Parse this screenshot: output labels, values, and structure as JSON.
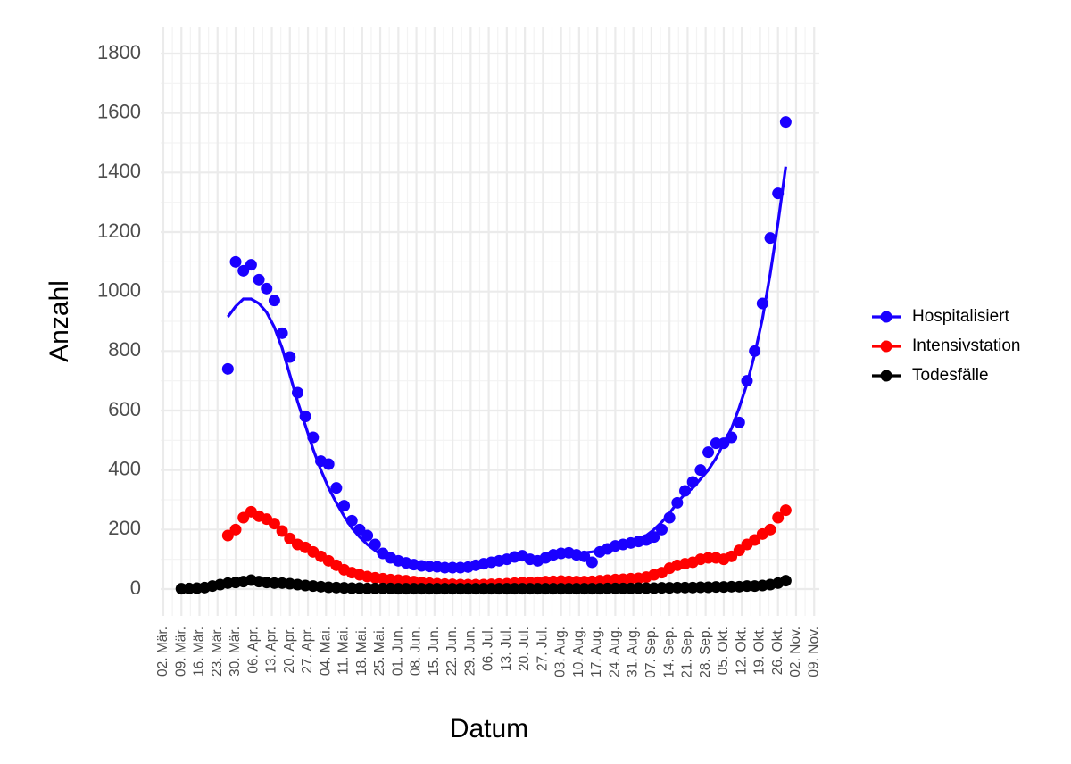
{
  "chart_data": {
    "type": "scatter",
    "x_label": "Datum",
    "y_label": "Anzahl",
    "x": [
      "03-09",
      "03-12",
      "03-15",
      "03-18",
      "03-21",
      "03-24",
      "03-27",
      "03-30",
      "04-02",
      "04-05",
      "04-08",
      "04-11",
      "04-14",
      "04-17",
      "04-20",
      "04-23",
      "04-26",
      "04-29",
      "05-02",
      "05-05",
      "05-08",
      "05-11",
      "05-14",
      "05-17",
      "05-20",
      "05-23",
      "05-26",
      "05-29",
      "06-01",
      "06-04",
      "06-07",
      "06-10",
      "06-13",
      "06-16",
      "06-19",
      "06-22",
      "06-25",
      "06-28",
      "07-01",
      "07-04",
      "07-07",
      "07-10",
      "07-13",
      "07-16",
      "07-19",
      "07-22",
      "07-25",
      "07-28",
      "07-31",
      "08-03",
      "08-06",
      "08-09",
      "08-12",
      "08-15",
      "08-18",
      "08-21",
      "08-24",
      "08-27",
      "08-30",
      "09-02",
      "09-05",
      "09-08",
      "09-11",
      "09-14",
      "09-17",
      "09-20",
      "09-23",
      "09-26",
      "09-29",
      "10-02",
      "10-05",
      "10-08",
      "10-11",
      "10-14",
      "10-17",
      "10-20",
      "10-23",
      "10-26",
      "10-29"
    ],
    "series": [
      {
        "name": "Hospitalisiert",
        "color": "#1a00ff",
        "values": [
          null,
          null,
          null,
          null,
          null,
          null,
          740,
          1100,
          1070,
          1090,
          1040,
          1010,
          970,
          860,
          780,
          660,
          580,
          510,
          430,
          420,
          340,
          280,
          230,
          200,
          180,
          150,
          120,
          105,
          95,
          88,
          82,
          78,
          76,
          75,
          72,
          72,
          72,
          74,
          80,
          85,
          90,
          95,
          100,
          108,
          112,
          100,
          95,
          105,
          115,
          120,
          122,
          115,
          110,
          90,
          125,
          135,
          145,
          150,
          155,
          160,
          165,
          175,
          200,
          240,
          290,
          330,
          360,
          400,
          460,
          490,
          490,
          510,
          560,
          700,
          800,
          960,
          1180,
          1330,
          1570
        ],
        "trend": [
          null,
          null,
          null,
          null,
          null,
          null,
          915,
          950,
          975,
          975,
          960,
          930,
          880,
          810,
          720,
          630,
          550,
          470,
          400,
          340,
          290,
          245,
          205,
          175,
          150,
          130,
          112,
          100,
          90,
          83,
          78,
          75,
          73,
          72,
          72,
          72,
          73,
          75,
          78,
          82,
          87,
          92,
          97,
          100,
          103,
          105,
          107,
          110,
          113,
          115,
          118,
          120,
          122,
          125,
          130,
          135,
          140,
          147,
          155,
          165,
          180,
          200,
          225,
          255,
          290,
          320,
          340,
          370,
          400,
          440,
          490,
          540,
          610,
          690,
          790,
          910,
          1060,
          1230,
          1420
        ]
      },
      {
        "name": "Intensivstation",
        "color": "#ff0000",
        "values": [
          null,
          null,
          null,
          null,
          null,
          null,
          180,
          200,
          240,
          260,
          245,
          235,
          220,
          195,
          170,
          150,
          140,
          125,
          110,
          95,
          80,
          65,
          55,
          48,
          42,
          38,
          35,
          32,
          30,
          28,
          25,
          22,
          20,
          18,
          17,
          16,
          15,
          15,
          15,
          15,
          16,
          17,
          18,
          20,
          22,
          22,
          23,
          25,
          26,
          27,
          26,
          25,
          25,
          26,
          28,
          30,
          32,
          33,
          35,
          36,
          40,
          48,
          55,
          70,
          80,
          85,
          90,
          100,
          105,
          105,
          100,
          110,
          130,
          150,
          165,
          185,
          200,
          240,
          265
        ]
      },
      {
        "name": "Todesfälle",
        "color": "#000000",
        "values": [
          1,
          2,
          3,
          5,
          10,
          15,
          20,
          22,
          25,
          30,
          25,
          22,
          20,
          20,
          18,
          15,
          12,
          10,
          8,
          6,
          5,
          4,
          3,
          3,
          2,
          2,
          2,
          2,
          1,
          1,
          1,
          1,
          1,
          1,
          1,
          1,
          1,
          1,
          1,
          1,
          1,
          1,
          1,
          1,
          1,
          1,
          1,
          1,
          1,
          1,
          1,
          1,
          1,
          1,
          1,
          2,
          2,
          2,
          2,
          3,
          3,
          3,
          4,
          4,
          5,
          5,
          5,
          6,
          6,
          7,
          7,
          8,
          8,
          10,
          10,
          12,
          15,
          20,
          28
        ]
      }
    ],
    "xlim": [
      "03-01",
      "11-11"
    ],
    "xticks": [
      {
        "value": "03-02",
        "label": "02. Mär."
      },
      {
        "value": "03-09",
        "label": "09. Mär."
      },
      {
        "value": "03-16",
        "label": "16. Mär."
      },
      {
        "value": "03-23",
        "label": "23. Mär."
      },
      {
        "value": "03-30",
        "label": "30. Mär."
      },
      {
        "value": "04-06",
        "label": "06. Apr."
      },
      {
        "value": "04-13",
        "label": "13. Apr."
      },
      {
        "value": "04-20",
        "label": "20. Apr."
      },
      {
        "value": "04-27",
        "label": "27. Apr."
      },
      {
        "value": "05-04",
        "label": "04. Mai."
      },
      {
        "value": "05-11",
        "label": "11. Mai."
      },
      {
        "value": "05-18",
        "label": "18. Mai."
      },
      {
        "value": "05-25",
        "label": "25. Mai."
      },
      {
        "value": "06-01",
        "label": "01. Jun."
      },
      {
        "value": "06-08",
        "label": "08. Jun."
      },
      {
        "value": "06-15",
        "label": "15. Jun."
      },
      {
        "value": "06-22",
        "label": "22. Jun."
      },
      {
        "value": "06-29",
        "label": "29. Jun."
      },
      {
        "value": "07-06",
        "label": "06. Jul."
      },
      {
        "value": "07-13",
        "label": "13. Jul."
      },
      {
        "value": "07-20",
        "label": "20. Jul."
      },
      {
        "value": "07-27",
        "label": "27. Jul."
      },
      {
        "value": "08-03",
        "label": "03. Aug."
      },
      {
        "value": "08-10",
        "label": "10. Aug."
      },
      {
        "value": "08-17",
        "label": "17. Aug."
      },
      {
        "value": "08-24",
        "label": "24. Aug."
      },
      {
        "value": "08-31",
        "label": "31. Aug."
      },
      {
        "value": "09-07",
        "label": "07. Sep."
      },
      {
        "value": "09-14",
        "label": "14. Sep."
      },
      {
        "value": "09-21",
        "label": "21. Sep."
      },
      {
        "value": "09-28",
        "label": "28. Sep."
      },
      {
        "value": "10-05",
        "label": "05. Okt."
      },
      {
        "value": "10-12",
        "label": "12. Okt."
      },
      {
        "value": "10-19",
        "label": "19. Okt."
      },
      {
        "value": "10-26",
        "label": "26. Okt."
      },
      {
        "value": "11-02",
        "label": "02. Nov."
      },
      {
        "value": "11-09",
        "label": "09. Nov."
      }
    ],
    "ylim": [
      -90,
      1890
    ],
    "yticks": [
      0,
      200,
      400,
      600,
      800,
      1000,
      1200,
      1400,
      1600,
      1800
    ],
    "grid": true,
    "legend": "right"
  }
}
